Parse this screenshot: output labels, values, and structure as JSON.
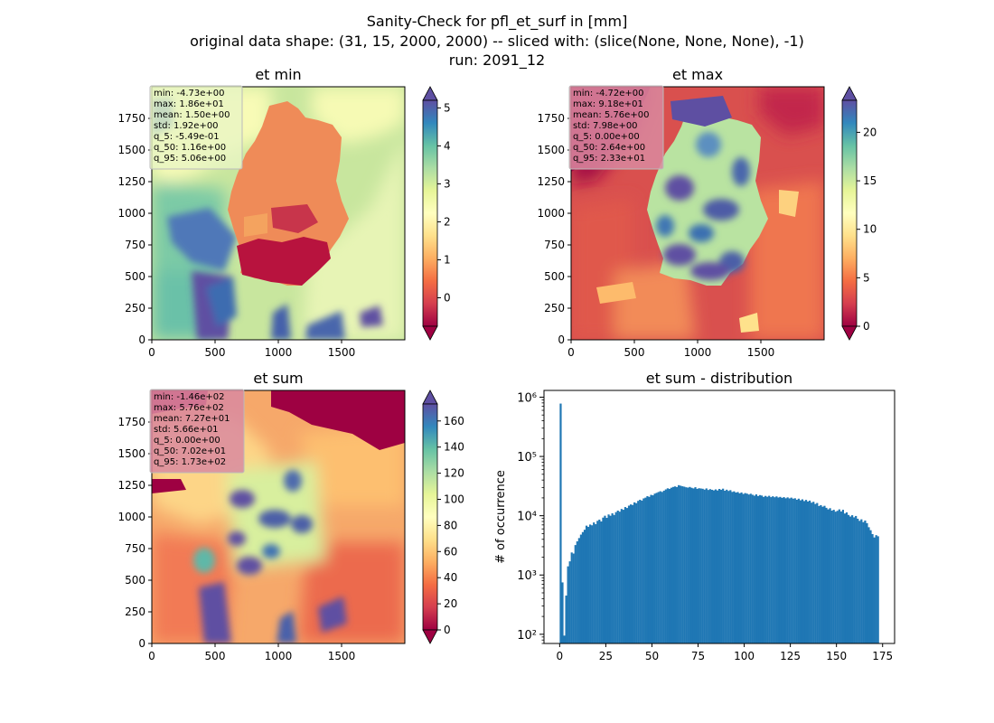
{
  "figure": {
    "title_lines": [
      "Sanity-Check for pfl_et_surf in [mm]",
      "original data shape: (31, 15, 2000, 2000) -- sliced with: (slice(None, None, None), -1)",
      "run: 2091_12"
    ]
  },
  "chart_data": [
    {
      "type": "heatmap",
      "title": "et min",
      "xticks": [
        0,
        500,
        1000,
        1500
      ],
      "yticks": [
        0,
        250,
        500,
        750,
        1000,
        1250,
        1500,
        1750
      ],
      "xlim": [
        0,
        2000
      ],
      "ylim": [
        0,
        2000
      ],
      "colormap": "Spectral",
      "colorbar": {
        "min": -0.75,
        "max": 5.2,
        "ticks": [
          0,
          1,
          2,
          3,
          4,
          5
        ],
        "extend": "both"
      },
      "stats": [
        "min: -4.73e+00",
        "max: 1.86e+01",
        "mean: 1.50e+00",
        "std: 1.92e+00",
        "q_5: -5.49e-01",
        "q_50: 1.16e+00",
        "q_95: 5.06e+00"
      ],
      "stats_box_color": "#e9f5c4"
    },
    {
      "type": "heatmap",
      "title": "et max",
      "xticks": [
        0,
        500,
        1000,
        1500
      ],
      "yticks": [
        0,
        250,
        500,
        750,
        1000,
        1250,
        1500,
        1750
      ],
      "xlim": [
        0,
        2000
      ],
      "ylim": [
        0,
        2000
      ],
      "colormap": "Spectral",
      "colorbar": {
        "min": 0,
        "max": 23.3,
        "ticks": [
          0,
          5,
          10,
          15,
          20
        ],
        "extend": "both"
      },
      "stats": [
        "min: -4.72e+00",
        "max: 9.18e+01",
        "mean: 5.76e+00",
        "std: 7.98e+00",
        "q_5: 0.00e+00",
        "q_50: 2.64e+00",
        "q_95: 2.33e+01"
      ],
      "stats_box_color": "#d98aa0"
    },
    {
      "type": "heatmap",
      "title": "et sum",
      "xticks": [
        0,
        500,
        1000,
        1500
      ],
      "yticks": [
        0,
        250,
        500,
        750,
        1000,
        1250,
        1500,
        1750
      ],
      "xlim": [
        0,
        2000
      ],
      "ylim": [
        0,
        2000
      ],
      "colormap": "Spectral",
      "colorbar": {
        "min": 0,
        "max": 173,
        "ticks": [
          0,
          20,
          40,
          60,
          80,
          100,
          120,
          140,
          160
        ],
        "extend": "both"
      },
      "stats": [
        "min: -1.46e+02",
        "max: 5.76e+02",
        "mean: 7.27e+01",
        "std: 5.66e+01",
        "q_5: 0.00e+00",
        "q_50: 7.02e+01",
        "q_95: 1.73e+02"
      ],
      "stats_box_color": "#d98aa0"
    },
    {
      "type": "bar",
      "title": "et sum - distribution",
      "ylabel": "# of occurrence",
      "yscale": "log",
      "xlim": [
        -8.5,
        181.5
      ],
      "ylim": [
        70,
        1300000
      ],
      "xticks": [
        0,
        25,
        50,
        75,
        100,
        125,
        150,
        175
      ],
      "yticks": [
        100,
        1000,
        10000,
        100000,
        1000000
      ],
      "ytick_labels": [
        "10²",
        "10³",
        "10⁴",
        "10⁵",
        "10⁶"
      ],
      "bar_color": "#1f77b4",
      "bin_start": 0,
      "bin_width": 1,
      "values": [
        780000,
        750,
        95,
        450,
        1400,
        1700,
        2400,
        2300,
        3200,
        3700,
        4200,
        4800,
        5300,
        5800,
        6800,
        6500,
        7100,
        6900,
        7700,
        7200,
        8200,
        8600,
        8000,
        9300,
        10000,
        9200,
        10500,
        10000,
        11000,
        10300,
        11500,
        12200,
        11700,
        13000,
        12600,
        14000,
        13500,
        14800,
        15500,
        15200,
        16800,
        16300,
        17800,
        18600,
        18000,
        19600,
        20200,
        21400,
        20800,
        22500,
        22100,
        23600,
        24300,
        25100,
        25900,
        25200,
        26500,
        27800,
        29000,
        28400,
        29700,
        30600,
        31200,
        30500,
        32800,
        32100,
        31400,
        30900,
        30200,
        29800,
        30600,
        29600,
        28900,
        30300,
        28400,
        29100,
        28800,
        28500,
        27600,
        28900,
        27200,
        28100,
        27400,
        26800,
        27800,
        26700,
        28300,
        27400,
        28600,
        26400,
        27500,
        26200,
        27000,
        25200,
        25800,
        24600,
        25100,
        23900,
        24700,
        23300,
        24100,
        23600,
        22800,
        23500,
        22600,
        21800,
        22900,
        21500,
        22300,
        21900,
        20800,
        21600,
        20900,
        21700,
        20600,
        21300,
        20500,
        21200,
        20300,
        20800,
        20000,
        20600,
        19700,
        20400,
        19600,
        20200,
        19400,
        19700,
        18600,
        19400,
        18200,
        18900,
        17700,
        18500,
        17400,
        18000,
        16600,
        17200,
        15800,
        16400,
        14600,
        15100,
        14200,
        14700,
        13600,
        12800,
        13400,
        12200,
        12600,
        11700,
        12100,
        12800,
        11800,
        12600,
        10900,
        11400,
        10300,
        9700,
        10200,
        9400,
        9900,
        8900,
        8200,
        8700,
        7800,
        8300,
        7500,
        6400,
        5700,
        4900,
        4300,
        4700,
        4500
      ]
    }
  ]
}
